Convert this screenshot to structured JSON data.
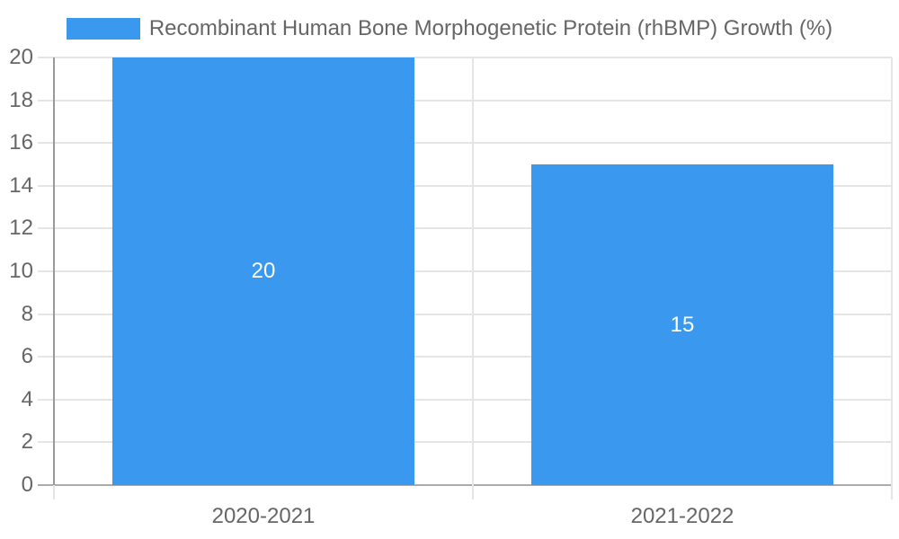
{
  "legend": {
    "label": "Recombinant Human Bone Morphogenetic Protein (rhBMP) Growth (%)"
  },
  "chart_data": {
    "type": "bar",
    "title": "",
    "categories": [
      "2020-2021",
      "2021-2022"
    ],
    "series": [
      {
        "name": "Recombinant Human Bone Morphogenetic Protein (rhBMP) Growth (%)",
        "values": [
          20,
          15
        ]
      }
    ],
    "data_labels": [
      "20",
      "15"
    ],
    "xlabel": "",
    "ylabel": "",
    "ylim": [
      0,
      20
    ],
    "yticks": [
      0,
      2,
      4,
      6,
      8,
      10,
      12,
      14,
      16,
      18,
      20
    ],
    "grid": true,
    "legend_position": "top",
    "colors": {
      "bar": "#3a99ee",
      "data_label": "#ffffff",
      "tick_label": "#666666",
      "legend_text": "#666666",
      "gridline": "#e5e5e5",
      "zero_line": "#ababab",
      "axis_line": "#999999",
      "background": "#ffffff"
    }
  }
}
